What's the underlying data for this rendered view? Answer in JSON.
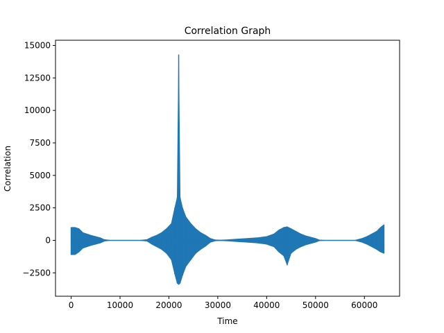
{
  "chart_data": {
    "type": "line",
    "title": "Correlation Graph",
    "xlabel": "Time",
    "ylabel": "Correlation",
    "xlim": [
      -3200,
      67200
    ],
    "ylim": [
      -4300,
      15400
    ],
    "xticks": [
      0,
      10000,
      20000,
      30000,
      40000,
      50000,
      60000
    ],
    "xtick_labels": [
      "0",
      "10000",
      "20000",
      "30000",
      "40000",
      "50000",
      "60000"
    ],
    "yticks": [
      -2500,
      0,
      2500,
      5000,
      7500,
      10000,
      12500,
      15000
    ],
    "ytick_labels": [
      "−2500",
      "0",
      "2500",
      "5000",
      "7500",
      "10000",
      "12500",
      "15000"
    ],
    "grid": false,
    "series": [
      {
        "color": "#1f77b4",
        "x": [
          0,
          800,
          1600,
          2400,
          3200,
          4000,
          5000,
          6000,
          6800,
          8000,
          10000,
          12000,
          14000,
          15500,
          16500,
          17500,
          18500,
          19500,
          20500,
          21200,
          21700,
          22000,
          22300,
          22800,
          23500,
          24500,
          25500,
          26500,
          27500,
          28500,
          29500,
          30500,
          32000,
          34000,
          36000,
          38000,
          40000,
          41500,
          42500,
          43500,
          44200,
          45000,
          46000,
          47000,
          48000,
          49000,
          50000,
          50800,
          52000,
          55000,
          58000,
          59500,
          60500,
          61500,
          62500,
          63300,
          64000
        ],
        "upper": [
          1000,
          1000,
          900,
          600,
          500,
          400,
          300,
          200,
          60,
          10,
          5,
          5,
          5,
          60,
          250,
          400,
          600,
          900,
          1300,
          2500,
          3300,
          14300,
          3300,
          2500,
          1800,
          1300,
          900,
          600,
          400,
          150,
          40,
          20,
          50,
          100,
          150,
          200,
          300,
          500,
          800,
          1000,
          1050,
          900,
          700,
          500,
          350,
          250,
          150,
          30,
          5,
          5,
          5,
          150,
          300,
          500,
          700,
          1000,
          1200
        ],
        "lower": [
          -1100,
          -1100,
          -900,
          -600,
          -500,
          -400,
          -300,
          -200,
          -60,
          -10,
          -5,
          -5,
          -5,
          -60,
          -300,
          -500,
          -700,
          -1000,
          -1500,
          -2600,
          -3300,
          -3400,
          -3300,
          -2700,
          -2000,
          -1500,
          -1000,
          -700,
          -450,
          -150,
          -40,
          -20,
          -50,
          -100,
          -150,
          -200,
          -300,
          -500,
          -900,
          -1200,
          -1900,
          -1000,
          -700,
          -500,
          -350,
          -250,
          -150,
          -30,
          -5,
          -5,
          -5,
          -150,
          -300,
          -500,
          -700,
          -900,
          -1000
        ]
      }
    ]
  }
}
